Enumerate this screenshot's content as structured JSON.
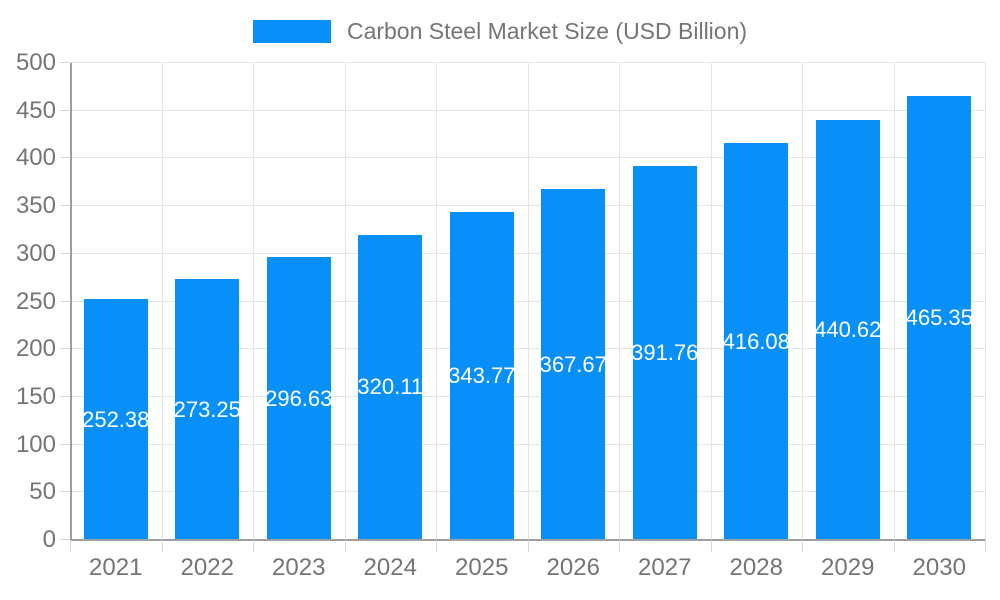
{
  "chart_data": {
    "type": "bar",
    "title": "Carbon Steel Market Size (USD Billion)",
    "categories": [
      "2021",
      "2022",
      "2023",
      "2024",
      "2025",
      "2026",
      "2027",
      "2028",
      "2029",
      "2030"
    ],
    "values": [
      252.38,
      273.25,
      296.63,
      320.11,
      343.77,
      367.67,
      391.76,
      416.08,
      440.62,
      465.35
    ],
    "data_labels": [
      "252.38",
      "273.25",
      "296.63",
      "320.11",
      "343.77",
      "367.67",
      "391.76",
      "416.08",
      "440.62",
      "465.35"
    ],
    "xlabel": "",
    "ylabel": "",
    "ylim": [
      0,
      500
    ],
    "ytick_step": 50,
    "ytick_labels": [
      "0",
      "50",
      "100",
      "150",
      "200",
      "250",
      "300",
      "350",
      "400",
      "450",
      "500"
    ],
    "grid": true,
    "legend_position": "top",
    "colors": {
      "bar": "#0890F8",
      "grid": "#e5e5e5",
      "axis": "#9e9e9e",
      "tick": "#d6d6d6",
      "tick_label": "#757575",
      "legend_text": "#757575",
      "data_label": "#ffffff",
      "background": "#ffffff"
    }
  }
}
